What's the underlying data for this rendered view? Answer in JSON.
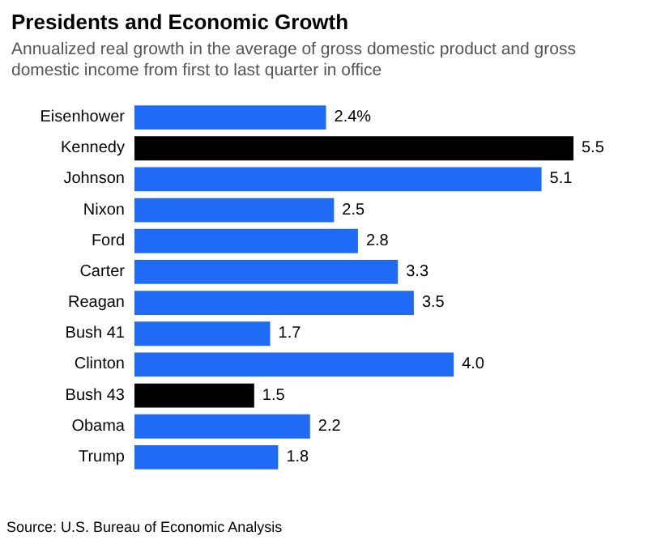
{
  "chart_data": {
    "type": "bar",
    "orientation": "horizontal",
    "title": "Presidents and Economic Growth",
    "subtitle": "Annualized real growth in the average of gross domestic product and gross domestic income from first to last quarter in office",
    "categories": [
      "Eisenhower",
      "Kennedy",
      "Johnson",
      "Nixon",
      "Ford",
      "Carter",
      "Reagan",
      "Bush 41",
      "Clinton",
      "Bush 43",
      "Obama",
      "Trump"
    ],
    "values": [
      2.4,
      5.5,
      5.1,
      2.5,
      2.8,
      3.3,
      3.5,
      1.7,
      4.0,
      1.5,
      2.2,
      1.8
    ],
    "colors": [
      "#1f6bf5",
      "#000000",
      "#1f6bf5",
      "#1f6bf5",
      "#1f6bf5",
      "#1f6bf5",
      "#1f6bf5",
      "#1f6bf5",
      "#1f6bf5",
      "#000000",
      "#1f6bf5",
      "#1f6bf5"
    ],
    "value_labels": [
      "2.4%",
      "5.5",
      "5.1",
      "2.5",
      "2.8",
      "3.3",
      "3.5",
      "1.7",
      "4.0",
      "1.5",
      "2.2",
      "1.8"
    ],
    "annotations": [
      "Source: U.S. Bureau of Economic Analysis"
    ]
  }
}
